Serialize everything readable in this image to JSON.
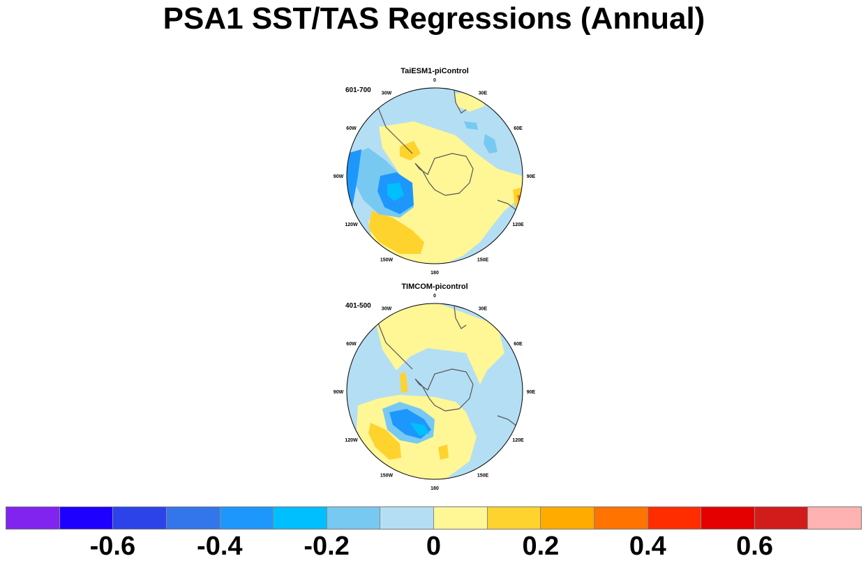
{
  "title": "PSA1 SST/TAS Regressions (Annual)",
  "panels": [
    {
      "id": "taiesm1",
      "title": "TaiESM1-piControl",
      "period": "601-700"
    },
    {
      "id": "timcom",
      "title": "TIMCOM-picontrol",
      "period": "401-500"
    }
  ],
  "longitude_labels": [
    "0",
    "30E",
    "60E",
    "90E",
    "120E",
    "150E",
    "180",
    "150W",
    "120W",
    "90W",
    "60W",
    "30W"
  ],
  "colorbar": {
    "boxes": [
      {
        "color": "#8124f0"
      },
      {
        "color": "#1d00ff"
      },
      {
        "color": "#2c43ea"
      },
      {
        "color": "#3376eb"
      },
      {
        "color": "#1e97fc"
      },
      {
        "color": "#00bffe"
      },
      {
        "color": "#77c9f2"
      },
      {
        "color": "#b4def3"
      },
      {
        "color": "#fff696"
      },
      {
        "color": "#fed32d"
      },
      {
        "color": "#ffab00"
      },
      {
        "color": "#ff7300"
      },
      {
        "color": "#ff2d00"
      },
      {
        "color": "#e50000"
      },
      {
        "color": "#d21c1c"
      },
      {
        "color": "#ffb2b2"
      }
    ],
    "tick_labels": [
      "-0.6",
      "-0.4",
      "-0.2",
      "0",
      "0.2",
      "0.4",
      "0.6"
    ]
  },
  "palette": {
    "ocean_neutral": "#b4def3",
    "weak_positive": "#fff696",
    "moderate_positive": "#fed32d",
    "strong_positive": "#ffab00",
    "orange": "#ff7300",
    "weak_negative": "#77c9f2",
    "moderate_negative": "#1e97fc",
    "strong_negative": "#00bffe",
    "coast": "#555555"
  }
}
